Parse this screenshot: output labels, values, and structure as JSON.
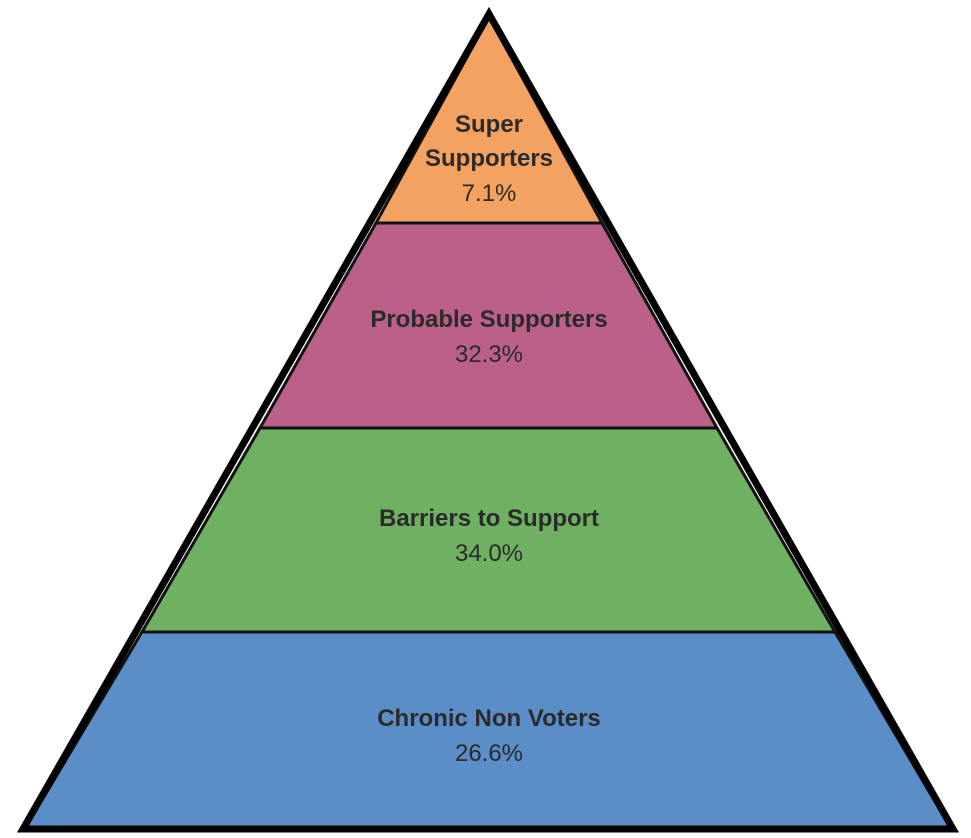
{
  "tiers": [
    {
      "name_lines": [
        "Super",
        "Supporters"
      ],
      "value": "7.1%",
      "color": "#f4a261"
    },
    {
      "name_lines": [
        "Probable Supporters"
      ],
      "value": "32.3%",
      "color": "#ba6089"
    },
    {
      "name_lines": [
        "Barriers to Support"
      ],
      "value": "34.0%",
      "color": "#6fb063"
    },
    {
      "name_lines": [
        "Chronic Non Voters"
      ],
      "value": "26.6%",
      "color": "#5b8ec7"
    }
  ],
  "colors": {
    "outline": "#000000",
    "divider": "#111111",
    "text": "#2b2b2b"
  }
}
